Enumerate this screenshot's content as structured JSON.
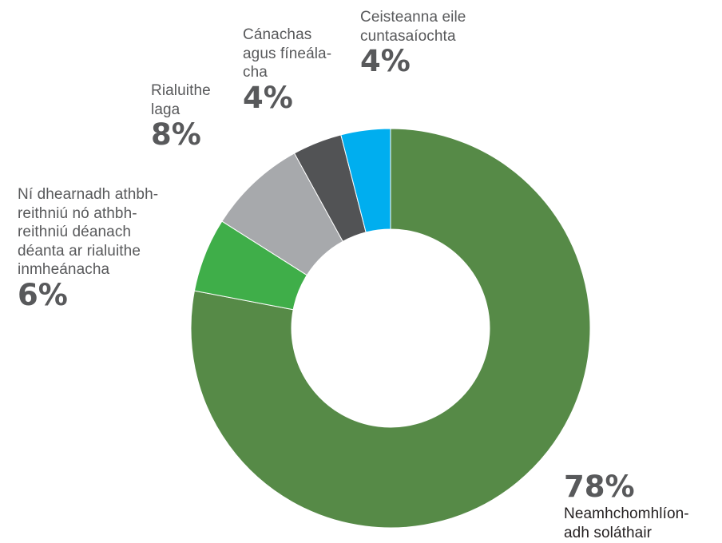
{
  "chart_data": {
    "type": "pie",
    "style": "donut",
    "start_angle_deg": 0,
    "direction": "clockwise",
    "series": [
      {
        "label": "Neamhchomhlíon-\nadh soláthair",
        "percent_label": "78%",
        "value": 78,
        "color": "#568a47"
      },
      {
        "label": "Ní dhearnadh athbh-\nreithniú nó athbh-\nreithniú déanach\ndéanta ar rialuithe\ninmheánacha",
        "percent_label": "6%",
        "value": 6,
        "color": "#3fae49"
      },
      {
        "label": "Rialuithe\nlaga",
        "percent_label": "8%",
        "value": 8,
        "color": "#a7a9ac"
      },
      {
        "label": "Cánachas\nagus fíneála-\ncha",
        "percent_label": "4%",
        "value": 4,
        "color": "#525355"
      },
      {
        "label": "Ceisteanna eile\ncuntasaíochta",
        "percent_label": "4%",
        "value": 4,
        "color": "#00aeef"
      }
    ]
  }
}
